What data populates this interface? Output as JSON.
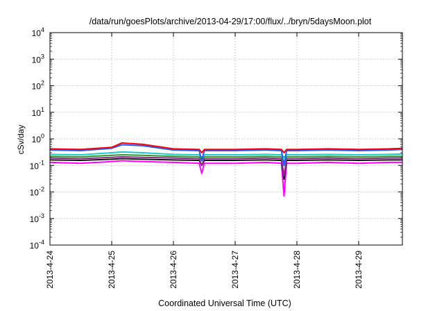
{
  "chart_data": {
    "type": "line",
    "title": "/data/run/goesPlots/archive/2013-04-29/17:00/flux/../bryn/5daysMoon.plot",
    "xlabel": "Coordinated Universal Time (UTC)",
    "ylabel": "cSv/day",
    "xlim": [
      "2013-04-24 00:00",
      "2013-04-29 17:00"
    ],
    "x_ticks": [
      "2013-4-24",
      "2013-4-25",
      "2013-4-26",
      "2013-4-27",
      "2013-4-28",
      "2013-4-29"
    ],
    "yscale": "log",
    "ylim": [
      0.0001,
      10000
    ],
    "y_ticks": [
      {
        "base": "10",
        "exp": "-4",
        "value": 0.0001
      },
      {
        "base": "10",
        "exp": "-3",
        "value": 0.001
      },
      {
        "base": "10",
        "exp": "-2",
        "value": 0.01
      },
      {
        "base": "10",
        "exp": "-1",
        "value": 0.1
      },
      {
        "base": "10",
        "exp": "0",
        "value": 1
      },
      {
        "base": "10",
        "exp": "1",
        "value": 10
      },
      {
        "base": "10",
        "exp": "2",
        "value": 100
      },
      {
        "base": "10",
        "exp": "3",
        "value": 1000
      },
      {
        "base": "10",
        "exp": "4",
        "value": 10000
      }
    ],
    "grid": true,
    "legend": "none",
    "x": [
      "2013-04-24 00:00",
      "2013-04-24 12:00",
      "2013-04-25 00:00",
      "2013-04-25 04:00",
      "2013-04-25 12:00",
      "2013-04-26 00:00",
      "2013-04-26 10:00",
      "2013-04-26 11:00",
      "2013-04-26 12:00",
      "2013-04-27 00:00",
      "2013-04-27 12:00",
      "2013-04-27 18:00",
      "2013-04-27 19:00",
      "2013-04-27 20:00",
      "2013-04-28 00:00",
      "2013-04-28 12:00",
      "2013-04-29 00:00",
      "2013-04-29 12:00",
      "2013-04-29 17:00"
    ],
    "series": [
      {
        "color": "#ff0000",
        "values": [
          0.42,
          0.4,
          0.48,
          0.7,
          0.62,
          0.42,
          0.4,
          0.3,
          0.4,
          0.4,
          0.42,
          0.4,
          0.3,
          0.4,
          0.4,
          0.42,
          0.4,
          0.42,
          0.44
        ]
      },
      {
        "color": "#1e5cff",
        "values": [
          0.38,
          0.36,
          0.44,
          0.6,
          0.55,
          0.38,
          0.36,
          0.15,
          0.36,
          0.36,
          0.38,
          0.36,
          0.1,
          0.36,
          0.36,
          0.38,
          0.36,
          0.38,
          0.4
        ]
      },
      {
        "color": "#20c8c8",
        "values": [
          0.26,
          0.25,
          0.3,
          0.32,
          0.3,
          0.26,
          0.25,
          0.2,
          0.25,
          0.25,
          0.26,
          0.25,
          0.2,
          0.25,
          0.25,
          0.26,
          0.25,
          0.26,
          0.27
        ]
      },
      {
        "color": "#2a9a2a",
        "values": [
          0.22,
          0.21,
          0.24,
          0.25,
          0.24,
          0.22,
          0.21,
          0.15,
          0.21,
          0.21,
          0.22,
          0.21,
          0.13,
          0.21,
          0.21,
          0.22,
          0.21,
          0.22,
          0.22
        ]
      },
      {
        "color": "#8a2a8a",
        "values": [
          0.19,
          0.18,
          0.2,
          0.21,
          0.2,
          0.19,
          0.18,
          0.1,
          0.18,
          0.18,
          0.19,
          0.18,
          0.04,
          0.18,
          0.18,
          0.19,
          0.18,
          0.19,
          0.19
        ]
      },
      {
        "color": "#111111",
        "values": [
          0.16,
          0.155,
          0.17,
          0.18,
          0.17,
          0.16,
          0.155,
          0.1,
          0.155,
          0.155,
          0.16,
          0.155,
          0.03,
          0.155,
          0.155,
          0.16,
          0.155,
          0.16,
          0.16
        ]
      },
      {
        "color": "#ff00ff",
        "values": [
          0.13,
          0.12,
          0.14,
          0.15,
          0.14,
          0.13,
          0.12,
          0.05,
          0.12,
          0.12,
          0.13,
          0.12,
          0.007,
          0.12,
          0.12,
          0.13,
          0.12,
          0.13,
          0.13
        ]
      }
    ]
  }
}
